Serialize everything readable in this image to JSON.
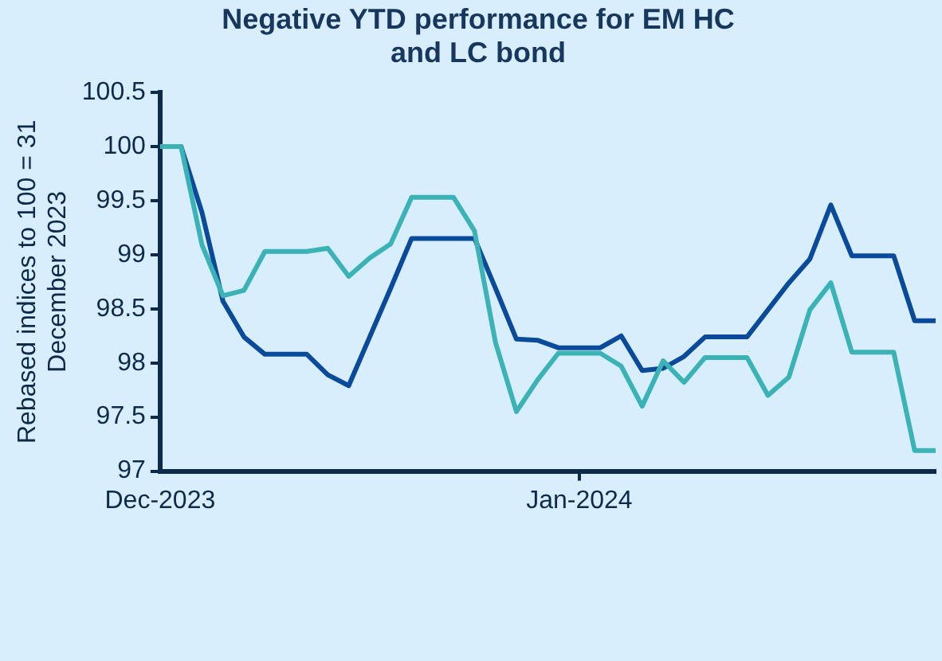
{
  "chart_data": {
    "type": "line",
    "title": "Negative YTD performance for EM HC and LC bond",
    "ylabel": "Rebased indices to 100 = 31 December 2023",
    "categories": [
      "Dec-2023",
      null,
      null,
      null,
      null,
      null,
      null,
      null,
      null,
      null,
      null,
      null,
      null,
      null,
      null,
      null,
      null,
      null,
      null,
      null,
      "Jan-2024",
      null,
      null,
      null,
      null,
      null,
      null,
      null,
      null,
      null,
      null,
      null,
      null,
      null,
      null,
      null,
      null,
      null
    ],
    "series": [
      {
        "color": "#3bb3b6",
        "values": [
          100,
          100,
          99.09,
          98.62,
          98.67,
          99.03,
          99.03,
          99.03,
          99.06,
          98.8,
          98.97,
          99.1,
          99.53,
          99.53,
          99.53,
          99.22,
          98.19,
          97.55,
          97.84,
          98.09,
          98.09,
          98.09,
          97.97,
          97.6,
          98.02,
          97.82,
          98.05,
          98.05,
          98.05,
          97.7,
          97.87,
          98.49,
          98.74,
          98.1,
          98.1,
          98.1,
          97.19,
          97.19
        ]
      },
      {
        "color": "#0a4a9a",
        "values": [
          100,
          100,
          99.39,
          98.57,
          98.24,
          98.08,
          98.08,
          98.08,
          97.89,
          97.79,
          98.24,
          98.69,
          99.15,
          99.15,
          99.15,
          99.15,
          98.69,
          98.22,
          98.21,
          98.14,
          98.14,
          98.14,
          98.25,
          97.93,
          97.95,
          98.06,
          98.24,
          98.24,
          98.24,
          98.49,
          98.74,
          98.96,
          99.46,
          98.99,
          98.99,
          98.99,
          98.39,
          98.39
        ]
      }
    ],
    "ylim": [
      97,
      100.5
    ],
    "yticks": [
      97,
      97.5,
      98,
      98.5,
      99,
      99.5,
      100,
      100.5
    ],
    "grid": false,
    "legend": false,
    "marker": "none",
    "line_style": "solid"
  }
}
